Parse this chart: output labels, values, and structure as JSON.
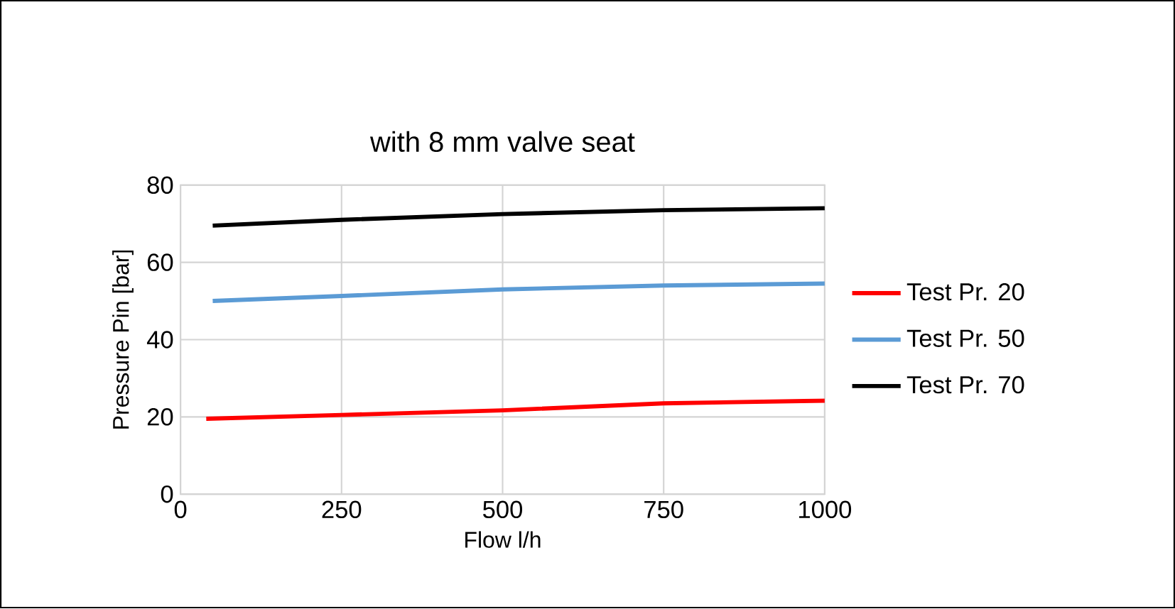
{
  "chart_data": {
    "type": "line",
    "title": "with 8 mm valve seat",
    "xlabel": "Flow l/h",
    "ylabel": "Pressure Pin [bar]",
    "xlim": [
      0,
      1000
    ],
    "xticks": [
      0,
      250,
      500,
      750,
      1000
    ],
    "ylim": [
      0,
      80
    ],
    "yticks": [
      0,
      20,
      40,
      60,
      80
    ],
    "grid": true,
    "legend": "right",
    "marker": "none",
    "line_style": "solid",
    "series": [
      {
        "name": "Test Pr. 20",
        "color": "#ff0000",
        "x": [
          40,
          250,
          500,
          750,
          1000
        ],
        "values": [
          19.5,
          20.5,
          21.7,
          23.5,
          24.2
        ]
      },
      {
        "name": "Test Pr.  50",
        "color": "#5b9bd5",
        "x": [
          50,
          250,
          500,
          750,
          1000
        ],
        "values": [
          50,
          51.3,
          53,
          54,
          54.5
        ]
      },
      {
        "name": "Test Pr. 70",
        "color": "#000000",
        "x": [
          50,
          250,
          500,
          750,
          1000
        ],
        "values": [
          69.5,
          71,
          72.5,
          73.5,
          74
        ]
      }
    ]
  }
}
